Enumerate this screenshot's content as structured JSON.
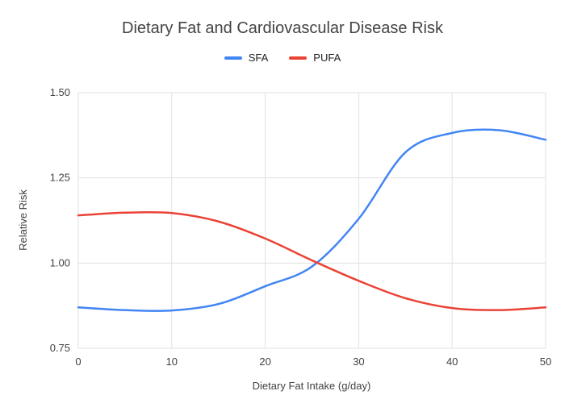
{
  "chart_data": {
    "type": "line",
    "title": "Dietary Fat and Cardiovascular Disease Risk",
    "xlabel": "Dietary Fat Intake (g/day)",
    "ylabel": "Relative Risk",
    "xlim": [
      0,
      50
    ],
    "ylim": [
      0.75,
      1.5
    ],
    "x_ticks": [
      0,
      10,
      20,
      30,
      40,
      50
    ],
    "y_ticks": [
      0.75,
      1.0,
      1.25,
      1.5
    ],
    "grid": true,
    "legend_position": "top",
    "x": [
      0,
      5,
      10,
      15,
      20,
      25,
      30,
      35,
      40,
      45,
      50
    ],
    "series": [
      {
        "name": "SFA",
        "color": "#4285f4",
        "values": [
          0.87,
          0.862,
          0.861,
          0.88,
          0.932,
          0.99,
          1.13,
          1.325,
          1.382,
          1.39,
          1.362
        ]
      },
      {
        "name": "PUFA",
        "color": "#ea4335",
        "values": [
          1.14,
          1.148,
          1.147,
          1.122,
          1.072,
          1.008,
          0.948,
          0.897,
          0.868,
          0.862,
          0.87
        ]
      }
    ]
  }
}
